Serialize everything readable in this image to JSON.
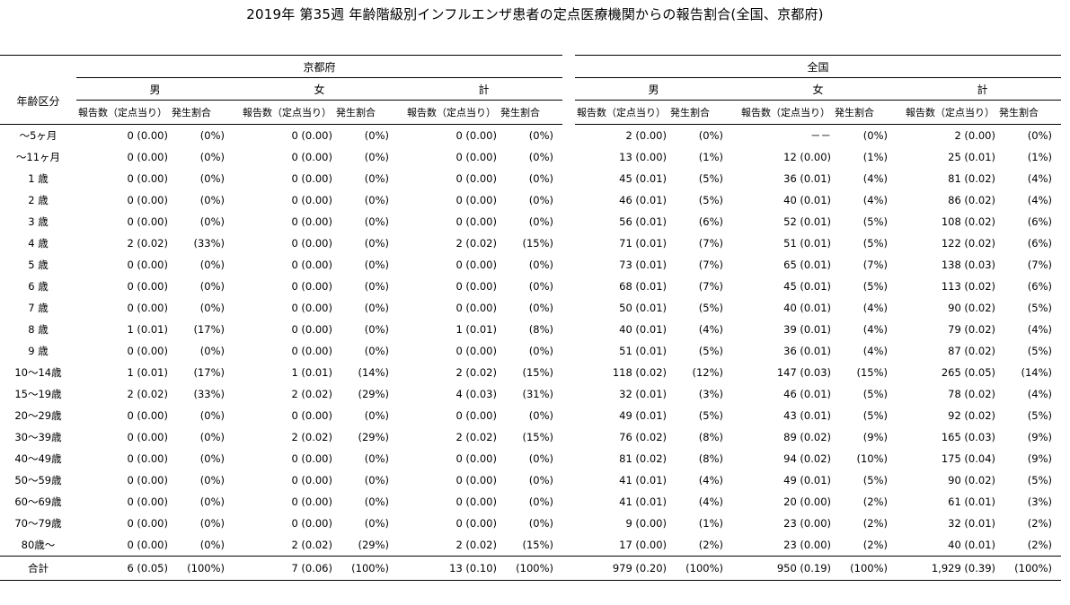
{
  "title": "2019年 第35週 年齢階級別インフルエンザ患者の定点医療機関からの報告割合(全国、京都府)",
  "header": {
    "age_label": "年齢区分",
    "regions": [
      "京都府",
      "全国"
    ],
    "sexes": [
      "男",
      "女",
      "計"
    ],
    "report_label": "報告数（定点当り）",
    "ratio_label": "発生割合"
  },
  "rows": [
    {
      "age": "～5ヶ月",
      "cells": [
        [
          "0 (0.00)",
          "(0%)"
        ],
        [
          "0 (0.00)",
          "(0%)"
        ],
        [
          "0 (0.00)",
          "(0%)"
        ],
        [
          "2 (0.00)",
          "(0%)"
        ],
        [
          "－－",
          "(0%)"
        ],
        [
          "2 (0.00)",
          "(0%)"
        ]
      ]
    },
    {
      "age": "～11ヶ月",
      "cells": [
        [
          "0 (0.00)",
          "(0%)"
        ],
        [
          "0 (0.00)",
          "(0%)"
        ],
        [
          "0 (0.00)",
          "(0%)"
        ],
        [
          "13 (0.00)",
          "(1%)"
        ],
        [
          "12 (0.00)",
          "(1%)"
        ],
        [
          "25 (0.01)",
          "(1%)"
        ]
      ]
    },
    {
      "age": "1 歳",
      "cells": [
        [
          "0 (0.00)",
          "(0%)"
        ],
        [
          "0 (0.00)",
          "(0%)"
        ],
        [
          "0 (0.00)",
          "(0%)"
        ],
        [
          "45 (0.01)",
          "(5%)"
        ],
        [
          "36 (0.01)",
          "(4%)"
        ],
        [
          "81 (0.02)",
          "(4%)"
        ]
      ]
    },
    {
      "age": "2 歳",
      "cells": [
        [
          "0 (0.00)",
          "(0%)"
        ],
        [
          "0 (0.00)",
          "(0%)"
        ],
        [
          "0 (0.00)",
          "(0%)"
        ],
        [
          "46 (0.01)",
          "(5%)"
        ],
        [
          "40 (0.01)",
          "(4%)"
        ],
        [
          "86 (0.02)",
          "(4%)"
        ]
      ]
    },
    {
      "age": "3 歳",
      "cells": [
        [
          "0 (0.00)",
          "(0%)"
        ],
        [
          "0 (0.00)",
          "(0%)"
        ],
        [
          "0 (0.00)",
          "(0%)"
        ],
        [
          "56 (0.01)",
          "(6%)"
        ],
        [
          "52 (0.01)",
          "(5%)"
        ],
        [
          "108 (0.02)",
          "(6%)"
        ]
      ]
    },
    {
      "age": "4 歳",
      "cells": [
        [
          "2 (0.02)",
          "(33%)"
        ],
        [
          "0 (0.00)",
          "(0%)"
        ],
        [
          "2 (0.02)",
          "(15%)"
        ],
        [
          "71 (0.01)",
          "(7%)"
        ],
        [
          "51 (0.01)",
          "(5%)"
        ],
        [
          "122 (0.02)",
          "(6%)"
        ]
      ]
    },
    {
      "age": "5 歳",
      "cells": [
        [
          "0 (0.00)",
          "(0%)"
        ],
        [
          "0 (0.00)",
          "(0%)"
        ],
        [
          "0 (0.00)",
          "(0%)"
        ],
        [
          "73 (0.01)",
          "(7%)"
        ],
        [
          "65 (0.01)",
          "(7%)"
        ],
        [
          "138 (0.03)",
          "(7%)"
        ]
      ]
    },
    {
      "age": "6 歳",
      "cells": [
        [
          "0 (0.00)",
          "(0%)"
        ],
        [
          "0 (0.00)",
          "(0%)"
        ],
        [
          "0 (0.00)",
          "(0%)"
        ],
        [
          "68 (0.01)",
          "(7%)"
        ],
        [
          "45 (0.01)",
          "(5%)"
        ],
        [
          "113 (0.02)",
          "(6%)"
        ]
      ]
    },
    {
      "age": "7 歳",
      "cells": [
        [
          "0 (0.00)",
          "(0%)"
        ],
        [
          "0 (0.00)",
          "(0%)"
        ],
        [
          "0 (0.00)",
          "(0%)"
        ],
        [
          "50 (0.01)",
          "(5%)"
        ],
        [
          "40 (0.01)",
          "(4%)"
        ],
        [
          "90 (0.02)",
          "(5%)"
        ]
      ]
    },
    {
      "age": "8 歳",
      "cells": [
        [
          "1 (0.01)",
          "(17%)"
        ],
        [
          "0 (0.00)",
          "(0%)"
        ],
        [
          "1 (0.01)",
          "(8%)"
        ],
        [
          "40 (0.01)",
          "(4%)"
        ],
        [
          "39 (0.01)",
          "(4%)"
        ],
        [
          "79 (0.02)",
          "(4%)"
        ]
      ]
    },
    {
      "age": "9 歳",
      "cells": [
        [
          "0 (0.00)",
          "(0%)"
        ],
        [
          "0 (0.00)",
          "(0%)"
        ],
        [
          "0 (0.00)",
          "(0%)"
        ],
        [
          "51 (0.01)",
          "(5%)"
        ],
        [
          "36 (0.01)",
          "(4%)"
        ],
        [
          "87 (0.02)",
          "(5%)"
        ]
      ]
    },
    {
      "age": "10～14歳",
      "cells": [
        [
          "1 (0.01)",
          "(17%)"
        ],
        [
          "1 (0.01)",
          "(14%)"
        ],
        [
          "2 (0.02)",
          "(15%)"
        ],
        [
          "118 (0.02)",
          "(12%)"
        ],
        [
          "147 (0.03)",
          "(15%)"
        ],
        [
          "265 (0.05)",
          "(14%)"
        ]
      ]
    },
    {
      "age": "15～19歳",
      "cells": [
        [
          "2 (0.02)",
          "(33%)"
        ],
        [
          "2 (0.02)",
          "(29%)"
        ],
        [
          "4 (0.03)",
          "(31%)"
        ],
        [
          "32 (0.01)",
          "(3%)"
        ],
        [
          "46 (0.01)",
          "(5%)"
        ],
        [
          "78 (0.02)",
          "(4%)"
        ]
      ]
    },
    {
      "age": "20～29歳",
      "cells": [
        [
          "0 (0.00)",
          "(0%)"
        ],
        [
          "0 (0.00)",
          "(0%)"
        ],
        [
          "0 (0.00)",
          "(0%)"
        ],
        [
          "49 (0.01)",
          "(5%)"
        ],
        [
          "43 (0.01)",
          "(5%)"
        ],
        [
          "92 (0.02)",
          "(5%)"
        ]
      ]
    },
    {
      "age": "30～39歳",
      "cells": [
        [
          "0 (0.00)",
          "(0%)"
        ],
        [
          "2 (0.02)",
          "(29%)"
        ],
        [
          "2 (0.02)",
          "(15%)"
        ],
        [
          "76 (0.02)",
          "(8%)"
        ],
        [
          "89 (0.02)",
          "(9%)"
        ],
        [
          "165 (0.03)",
          "(9%)"
        ]
      ]
    },
    {
      "age": "40～49歳",
      "cells": [
        [
          "0 (0.00)",
          "(0%)"
        ],
        [
          "0 (0.00)",
          "(0%)"
        ],
        [
          "0 (0.00)",
          "(0%)"
        ],
        [
          "81 (0.02)",
          "(8%)"
        ],
        [
          "94 (0.02)",
          "(10%)"
        ],
        [
          "175 (0.04)",
          "(9%)"
        ]
      ]
    },
    {
      "age": "50～59歳",
      "cells": [
        [
          "0 (0.00)",
          "(0%)"
        ],
        [
          "0 (0.00)",
          "(0%)"
        ],
        [
          "0 (0.00)",
          "(0%)"
        ],
        [
          "41 (0.01)",
          "(4%)"
        ],
        [
          "49 (0.01)",
          "(5%)"
        ],
        [
          "90 (0.02)",
          "(5%)"
        ]
      ]
    },
    {
      "age": "60～69歳",
      "cells": [
        [
          "0 (0.00)",
          "(0%)"
        ],
        [
          "0 (0.00)",
          "(0%)"
        ],
        [
          "0 (0.00)",
          "(0%)"
        ],
        [
          "41 (0.01)",
          "(4%)"
        ],
        [
          "20 (0.00)",
          "(2%)"
        ],
        [
          "61 (0.01)",
          "(3%)"
        ]
      ]
    },
    {
      "age": "70～79歳",
      "cells": [
        [
          "0 (0.00)",
          "(0%)"
        ],
        [
          "0 (0.00)",
          "(0%)"
        ],
        [
          "0 (0.00)",
          "(0%)"
        ],
        [
          "9 (0.00)",
          "(1%)"
        ],
        [
          "23 (0.00)",
          "(2%)"
        ],
        [
          "32 (0.01)",
          "(2%)"
        ]
      ]
    },
    {
      "age": "80歳～",
      "cells": [
        [
          "0 (0.00)",
          "(0%)"
        ],
        [
          "2 (0.02)",
          "(29%)"
        ],
        [
          "2 (0.02)",
          "(15%)"
        ],
        [
          "17 (0.00)",
          "(2%)"
        ],
        [
          "23 (0.00)",
          "(2%)"
        ],
        [
          "40 (0.01)",
          "(2%)"
        ]
      ]
    }
  ],
  "total": {
    "age": "合計",
    "cells": [
      [
        "6 (0.05)",
        "(100%)"
      ],
      [
        "7 (0.06)",
        "(100%)"
      ],
      [
        "13 (0.10)",
        "(100%)"
      ],
      [
        "979 (0.20)",
        "(100%)"
      ],
      [
        "950 (0.19)",
        "(100%)"
      ],
      [
        "1,929 (0.39)",
        "(100%)"
      ]
    ]
  }
}
